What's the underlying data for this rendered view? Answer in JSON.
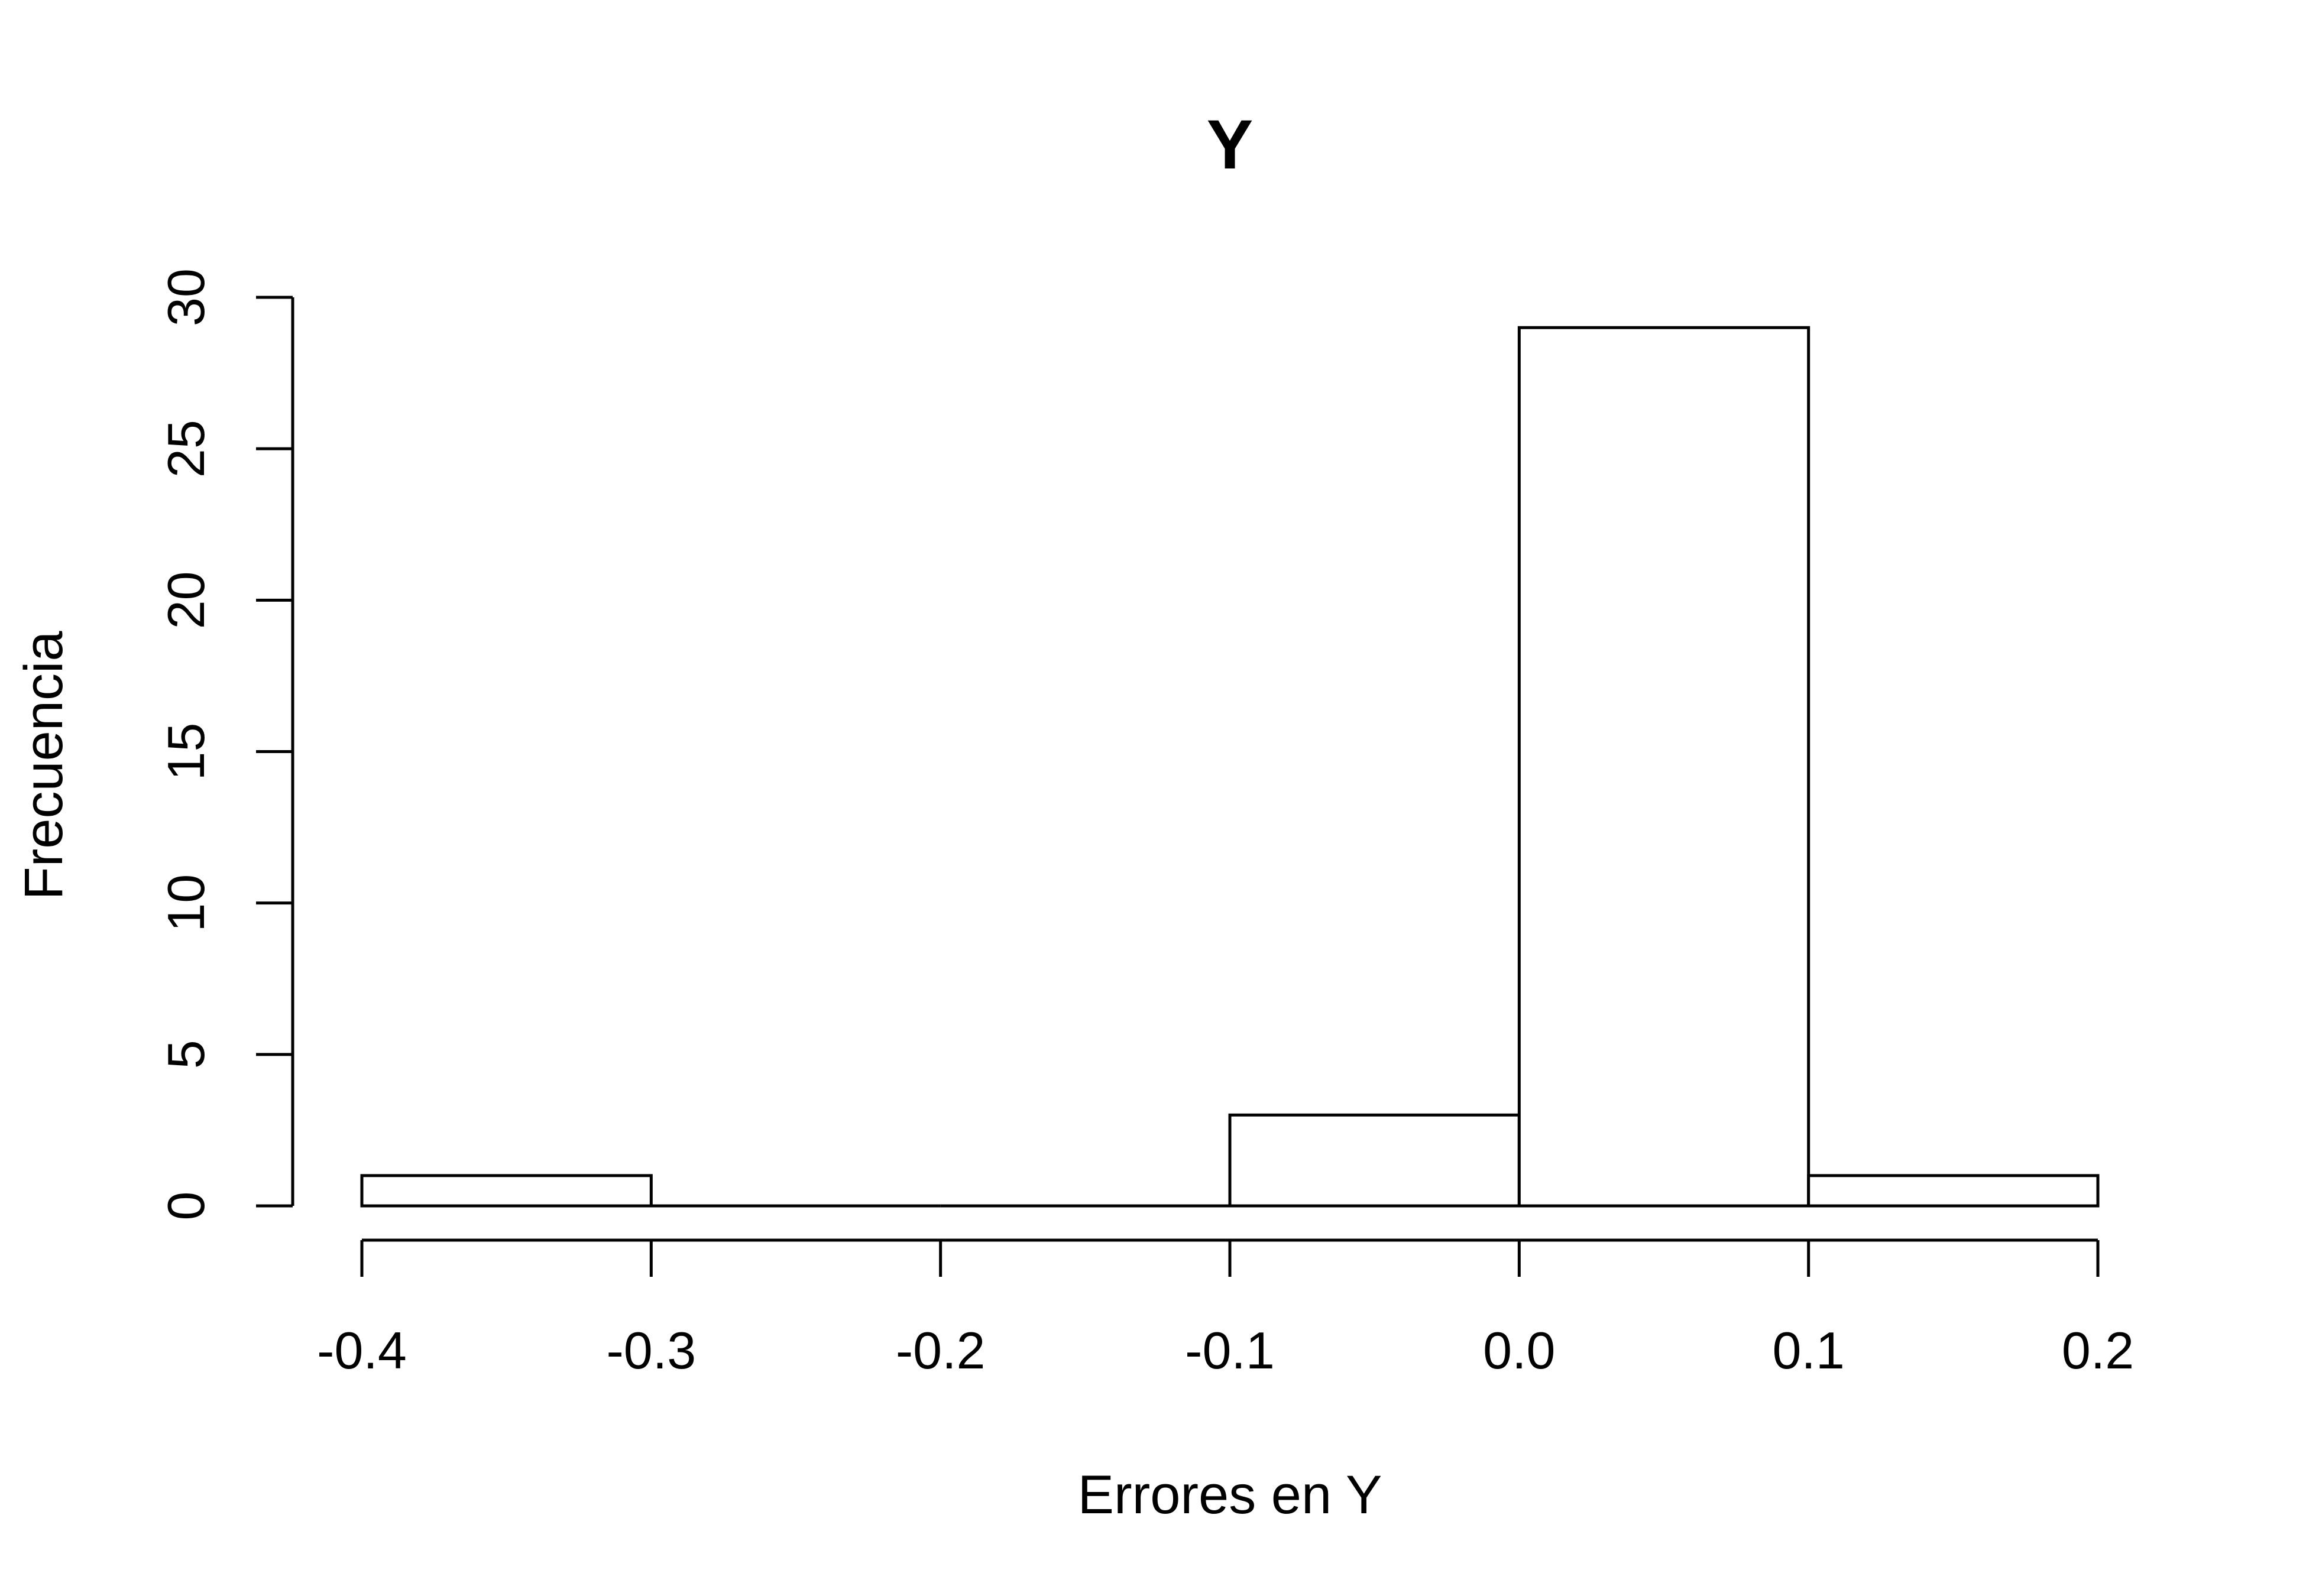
{
  "chart_data": {
    "type": "bar",
    "subtype": "histogram",
    "title": "Y",
    "xlabel": "Errores en Y",
    "ylabel": "Frecuencia",
    "bins": [
      {
        "from": -0.4,
        "to": -0.3,
        "count": 1
      },
      {
        "from": -0.3,
        "to": -0.2,
        "count": 0
      },
      {
        "from": -0.2,
        "to": -0.1,
        "count": 0
      },
      {
        "from": -0.1,
        "to": 0.0,
        "count": 3
      },
      {
        "from": 0.0,
        "to": 0.1,
        "count": 29
      },
      {
        "from": 0.1,
        "to": 0.2,
        "count": 1
      }
    ],
    "xlim": [
      -0.4,
      0.2
    ],
    "ylim": [
      0,
      30
    ],
    "x_ticks": [
      "-0.4",
      "-0.3",
      "-0.2",
      "-0.1",
      "0.0",
      "0.1",
      "0.2"
    ],
    "x_tick_values": [
      -0.4,
      -0.3,
      -0.2,
      -0.1,
      0.0,
      0.1,
      0.2
    ],
    "y_ticks": [
      "0",
      "5",
      "10",
      "15",
      "20",
      "25",
      "30"
    ],
    "y_tick_values": [
      0,
      5,
      10,
      15,
      20,
      25,
      30
    ],
    "grid": false,
    "legend": "none",
    "colors": {
      "bar_fill": "#ffffff",
      "bar_stroke": "#000000"
    }
  }
}
